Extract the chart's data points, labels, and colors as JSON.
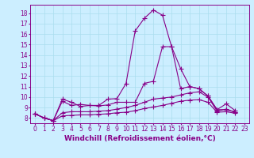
{
  "xlabel": "Windchill (Refroidissement éolien,°C)",
  "background_color": "#cceeff",
  "grid_color": "#aaddee",
  "line_color": "#880088",
  "xlim": [
    -0.5,
    23.5
  ],
  "ylim": [
    7.5,
    18.8
  ],
  "xticks": [
    0,
    1,
    2,
    3,
    4,
    5,
    6,
    7,
    8,
    9,
    10,
    11,
    12,
    13,
    14,
    15,
    16,
    17,
    18,
    19,
    20,
    21,
    22,
    23
  ],
  "yticks": [
    8,
    9,
    10,
    11,
    12,
    13,
    14,
    15,
    16,
    17,
    18
  ],
  "series": [
    [
      8.4,
      8.0,
      7.75,
      9.8,
      9.5,
      9.1,
      9.2,
      9.2,
      9.8,
      9.85,
      11.3,
      16.3,
      17.5,
      18.3,
      17.8,
      14.8,
      12.7,
      11.0,
      10.8,
      10.1,
      8.8,
      9.35,
      8.7
    ],
    [
      8.4,
      8.0,
      7.75,
      9.6,
      9.2,
      9.3,
      9.2,
      9.15,
      9.25,
      9.5,
      9.5,
      9.5,
      11.3,
      11.5,
      14.8,
      14.8,
      10.8,
      11.0,
      10.8,
      10.1,
      8.8,
      8.8,
      8.55
    ],
    [
      8.4,
      8.0,
      7.75,
      8.5,
      8.6,
      8.6,
      8.6,
      8.65,
      8.7,
      8.85,
      9.0,
      9.2,
      9.5,
      9.8,
      9.9,
      10.0,
      10.2,
      10.4,
      10.5,
      10.0,
      8.65,
      8.85,
      8.55
    ],
    [
      8.4,
      8.0,
      7.75,
      8.2,
      8.25,
      8.3,
      8.3,
      8.35,
      8.4,
      8.5,
      8.55,
      8.7,
      8.9,
      9.05,
      9.2,
      9.4,
      9.6,
      9.7,
      9.75,
      9.5,
      8.55,
      8.6,
      8.45
    ]
  ],
  "marker": "+",
  "markersize": 4,
  "linewidth": 0.8,
  "xlabel_fontsize": 6.5,
  "tick_fontsize": 5.5
}
